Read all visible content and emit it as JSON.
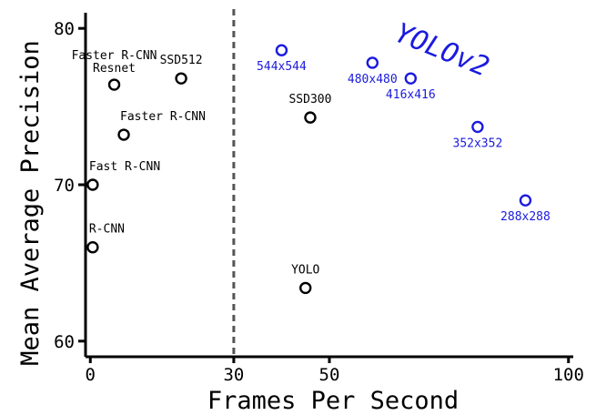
{
  "chart_data": {
    "type": "scatter",
    "title": "",
    "xlabel": "Frames Per Second",
    "ylabel": "Mean Average Precision",
    "xlim": [
      -1,
      101
    ],
    "ylim": [
      59,
      81
    ],
    "xticks": [
      {
        "value": 0,
        "label": "0"
      },
      {
        "value": 30,
        "label": "30"
      },
      {
        "value": 50,
        "label": "50"
      },
      {
        "value": 100,
        "label": "100"
      }
    ],
    "yticks": [
      {
        "value": 60,
        "label": "60"
      },
      {
        "value": 70,
        "label": "70"
      },
      {
        "value": 80,
        "label": "80"
      }
    ],
    "grid": false,
    "reference_line": {
      "x": 30,
      "style": "dashed",
      "color": "#555555"
    },
    "annotation": {
      "text": "YOLOv2",
      "color": "#1a1adf"
    },
    "series": [
      {
        "color": "#000000",
        "points": [
          {
            "x": 0.5,
            "y": 66.0,
            "label": "R-CNN"
          },
          {
            "x": 0.5,
            "y": 70.0,
            "label": "Fast R-CNN"
          },
          {
            "x": 7,
            "y": 73.2,
            "label": "Faster R-CNN"
          },
          {
            "x": 5,
            "y": 76.4,
            "label": "Faster R-CNN\nResnet"
          },
          {
            "x": 19,
            "y": 76.8,
            "label": "SSD512"
          },
          {
            "x": 46,
            "y": 74.3,
            "label": "SSD300"
          },
          {
            "x": 45,
            "y": 63.4,
            "label": "YOLO"
          }
        ]
      },
      {
        "color": "#1a1adf",
        "points": [
          {
            "x": 40,
            "y": 78.6,
            "label": "544x544"
          },
          {
            "x": 59,
            "y": 77.8,
            "label": "480x480"
          },
          {
            "x": 67,
            "y": 76.8,
            "label": "416x416"
          },
          {
            "x": 81,
            "y": 73.7,
            "label": "352x352"
          },
          {
            "x": 91,
            "y": 69.0,
            "label": "288x288"
          }
        ]
      }
    ]
  }
}
